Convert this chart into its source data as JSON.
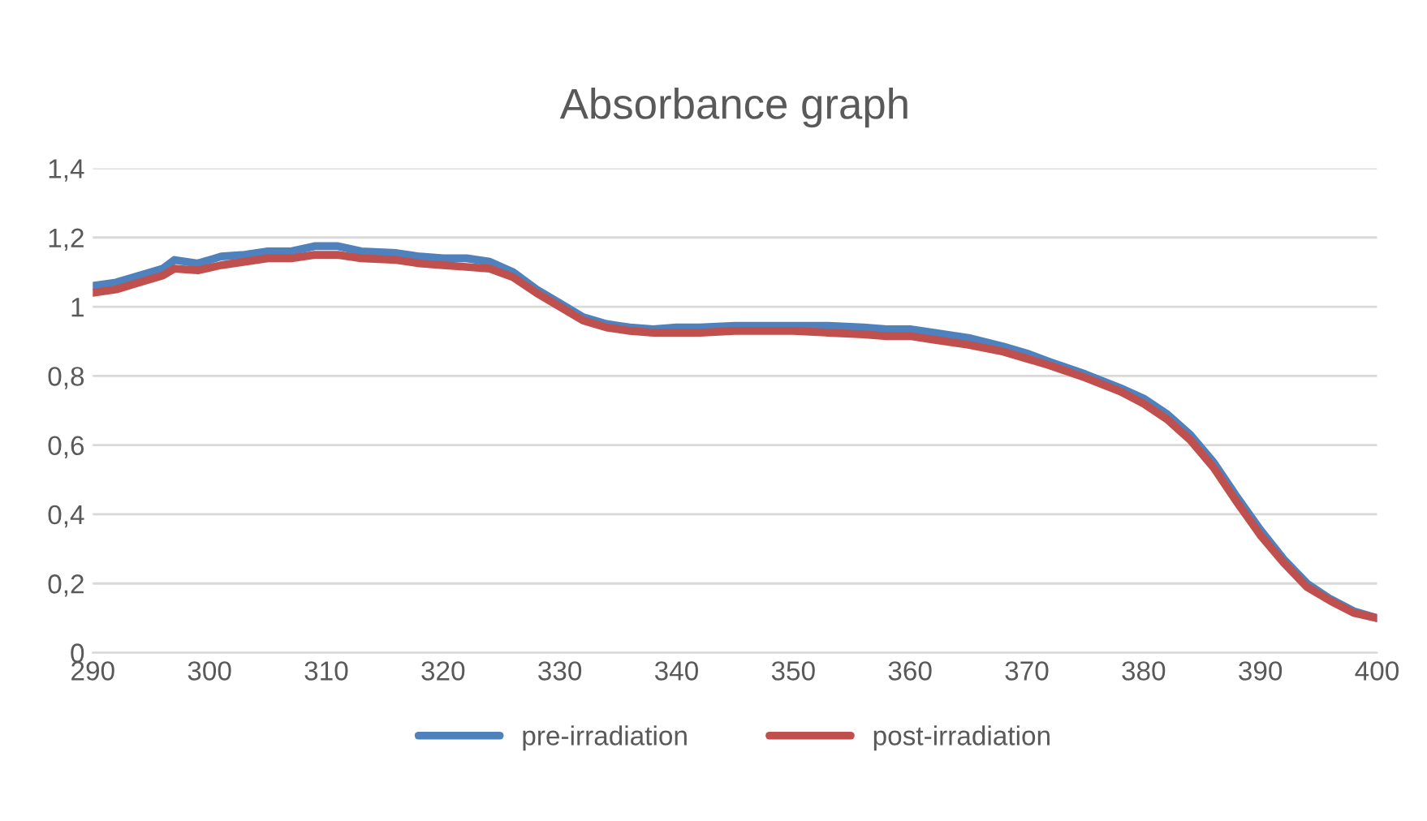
{
  "chart_data": {
    "type": "line",
    "title": "Absorbance graph",
    "x": [
      290,
      292,
      294,
      296,
      297,
      299,
      301,
      303,
      305,
      307,
      309,
      311,
      313,
      316,
      318,
      320,
      322,
      324,
      326,
      328,
      330,
      332,
      334,
      336,
      338,
      340,
      342,
      345,
      348,
      350,
      353,
      356,
      358,
      360,
      362,
      365,
      368,
      370,
      372,
      375,
      378,
      380,
      382,
      384,
      386,
      388,
      390,
      392,
      394,
      396,
      398,
      400
    ],
    "series": [
      {
        "name": "pre-irradiation",
        "color": "#4f81bd",
        "values": [
          1.06,
          1.07,
          1.09,
          1.11,
          1.135,
          1.125,
          1.145,
          1.15,
          1.16,
          1.16,
          1.175,
          1.175,
          1.16,
          1.155,
          1.145,
          1.14,
          1.14,
          1.13,
          1.1,
          1.05,
          1.01,
          0.97,
          0.95,
          0.94,
          0.935,
          0.94,
          0.94,
          0.945,
          0.945,
          0.945,
          0.945,
          0.94,
          0.935,
          0.935,
          0.925,
          0.91,
          0.885,
          0.865,
          0.84,
          0.805,
          0.765,
          0.735,
          0.69,
          0.63,
          0.55,
          0.45,
          0.355,
          0.27,
          0.2,
          0.155,
          0.12,
          0.1
        ]
      },
      {
        "name": "post-irradiation",
        "color": "#c0504d",
        "values": [
          1.04,
          1.05,
          1.07,
          1.09,
          1.11,
          1.105,
          1.12,
          1.13,
          1.14,
          1.14,
          1.15,
          1.15,
          1.14,
          1.135,
          1.125,
          1.12,
          1.115,
          1.11,
          1.085,
          1.04,
          1.0,
          0.96,
          0.94,
          0.93,
          0.925,
          0.925,
          0.925,
          0.93,
          0.93,
          0.93,
          0.925,
          0.92,
          0.915,
          0.915,
          0.905,
          0.89,
          0.87,
          0.85,
          0.83,
          0.795,
          0.755,
          0.72,
          0.675,
          0.615,
          0.535,
          0.435,
          0.34,
          0.26,
          0.19,
          0.15,
          0.115,
          0.1
        ]
      }
    ],
    "xlim": [
      290,
      400
    ],
    "xticks": [
      290,
      300,
      310,
      320,
      330,
      340,
      350,
      360,
      370,
      380,
      390,
      400
    ],
    "ylim": [
      0,
      1.4
    ],
    "yticks": [
      {
        "value": 0,
        "label": "0"
      },
      {
        "value": 0.2,
        "label": "0,2"
      },
      {
        "value": 0.4,
        "label": "0,4"
      },
      {
        "value": 0.6,
        "label": "0,6"
      },
      {
        "value": 0.8,
        "label": "0,8"
      },
      {
        "value": 1,
        "label": "1"
      },
      {
        "value": 1.2,
        "label": "1,2"
      },
      {
        "value": 1.4,
        "label": "1,4"
      }
    ],
    "grid": "y",
    "legend": "bottom",
    "marker": "none",
    "line_style": "solid"
  }
}
